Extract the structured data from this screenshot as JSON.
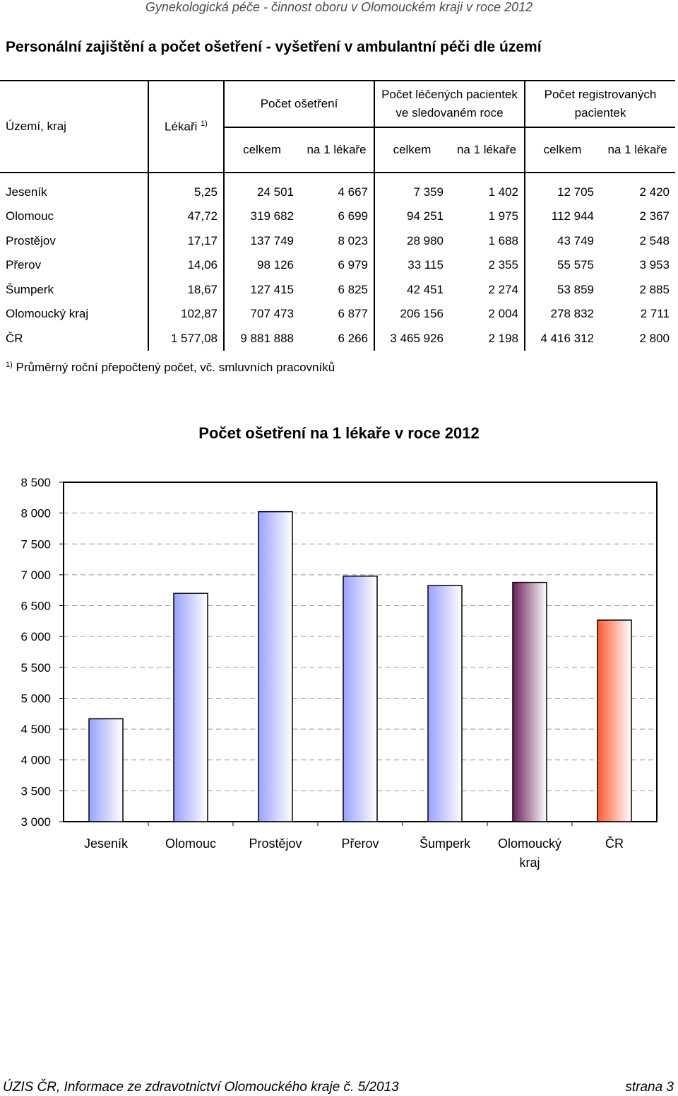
{
  "header": "Gynekologická péče - činnost oboru v Olomouckém kraji v roce 2012",
  "title": "Personální zajištění a počet ošetření - vyšetření v ambulantní péči dle území",
  "table": {
    "col_territory": "Území, kraj",
    "col_doctors": "Lékaři",
    "col_doctors_note": "1)",
    "group1": "Počet ošetření",
    "group2": "Počet léčených pacientek ve sledovaném roce",
    "group3": "Počet registrovaných pacientek",
    "sub_total": "celkem",
    "sub_per_doctor": "na 1 lékaře",
    "rows": [
      {
        "name": "Jeseník",
        "doctors": "5,25",
        "ot_total": "24 501",
        "ot_per": "4 667",
        "pt_total": "7 359",
        "pt_per": "1 402",
        "reg_total": "12 705",
        "reg_per": "2 420"
      },
      {
        "name": "Olomouc",
        "doctors": "47,72",
        "ot_total": "319 682",
        "ot_per": "6 699",
        "pt_total": "94 251",
        "pt_per": "1 975",
        "reg_total": "112 944",
        "reg_per": "2 367"
      },
      {
        "name": "Prostějov",
        "doctors": "17,17",
        "ot_total": "137 749",
        "ot_per": "8 023",
        "pt_total": "28 980",
        "pt_per": "1 688",
        "reg_total": "43 749",
        "reg_per": "2 548"
      },
      {
        "name": "Přerov",
        "doctors": "14,06",
        "ot_total": "98 126",
        "ot_per": "6 979",
        "pt_total": "33 115",
        "pt_per": "2 355",
        "reg_total": "55 575",
        "reg_per": "3 953"
      },
      {
        "name": "Šumperk",
        "doctors": "18,67",
        "ot_total": "127 415",
        "ot_per": "6 825",
        "pt_total": "42 451",
        "pt_per": "2 274",
        "reg_total": "53 859",
        "reg_per": "2 885"
      },
      {
        "name": "Olomoucký kraj",
        "doctors": "102,87",
        "ot_total": "707 473",
        "ot_per": "6 877",
        "pt_total": "206 156",
        "pt_per": "2 004",
        "reg_total": "278 832",
        "reg_per": "2 711"
      },
      {
        "name": "ČR",
        "doctors": "1 577,08",
        "ot_total": "9 881 888",
        "ot_per": "6 266",
        "pt_total": "3 465 926",
        "pt_per": "2 198",
        "reg_total": "4 416 312",
        "reg_per": "2 800"
      }
    ]
  },
  "footnote": {
    "mark": "1)",
    "text": "Průměrný roční přepočtený počet, vč. smluvních pracovníků"
  },
  "chart_data": {
    "type": "bar",
    "title": "Počet ošetření na 1 lékaře v roce 2012",
    "categories": [
      "Jeseník",
      "Olomouc",
      "Prostějov",
      "Přerov",
      "Šumperk",
      "Olomoucký kraj",
      "ČR"
    ],
    "category_lines": [
      [
        "Jeseník"
      ],
      [
        "Olomouc"
      ],
      [
        "Prostějov"
      ],
      [
        "Přerov"
      ],
      [
        "Šumperk"
      ],
      [
        "Olomoucký",
        "kraj"
      ],
      [
        "ČR"
      ]
    ],
    "values": [
      4667,
      6699,
      8023,
      6979,
      6825,
      6877,
      6266
    ],
    "ylim": [
      3000,
      8500
    ],
    "ytick_values": [
      3000,
      3500,
      4000,
      4500,
      5000,
      5500,
      6000,
      6500,
      7000,
      7500,
      8000,
      8500
    ],
    "ytick_labels": [
      "3 000",
      "3 500",
      "4 000",
      "4 500",
      "5 000",
      "5 500",
      "6 000",
      "6 500",
      "7 000",
      "7 500",
      "8 000",
      "8 500"
    ],
    "grid": "dashed horizontal",
    "bar_colors": [
      "#9aa0ff",
      "#9aa0ff",
      "#9aa0ff",
      "#9aa0ff",
      "#9aa0ff",
      "#6b1f5c",
      "#ff5a33"
    ]
  },
  "footer": {
    "left": "ÚZIS ČR, Informace ze zdravotnictví Olomouckého kraje č. 5/2013",
    "right": "strana 3"
  }
}
